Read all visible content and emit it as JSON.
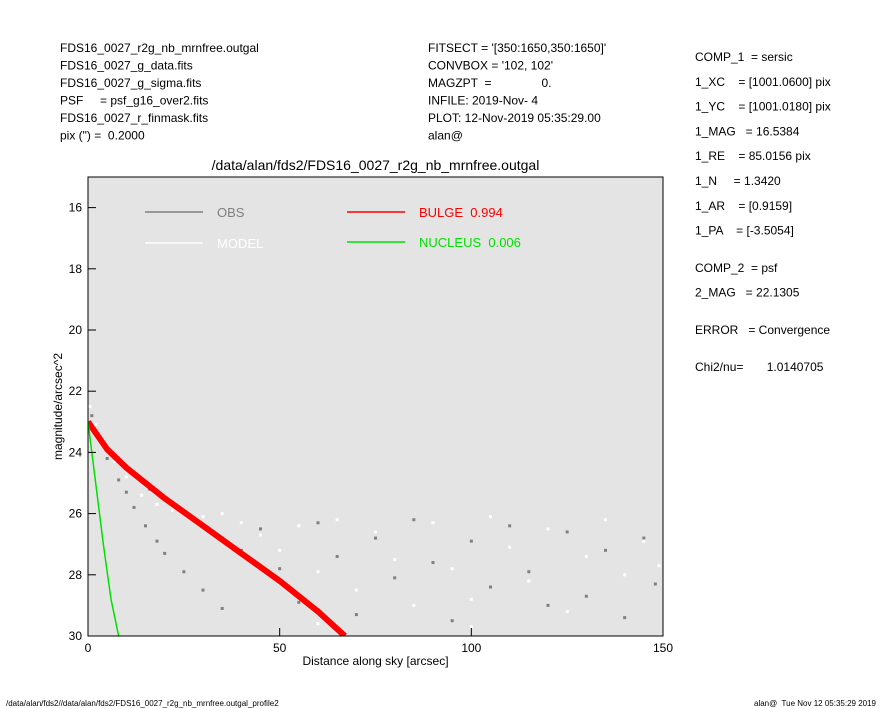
{
  "header": {
    "left": [
      "FDS16_0027_r2g_nb_mrnfree.outgal",
      "FDS16_0027_g_data.fits",
      "FDS16_0027_g_sigma.fits",
      "PSF     = psf_g16_over2.fits",
      "FDS16_0027_r_finmask.fits",
      "pix (\") =  0.2000"
    ],
    "middle": [
      "FITSECT = '[350:1650,350:1650]'",
      "CONVBOX = '102, 102'",
      "MAGZPT  =               0.",
      "INFILE: 2019-Nov- 4",
      "PLOT: 12-Nov-2019 05:35:29.00",
      "alan@"
    ]
  },
  "params": [
    [
      "COMP_1  = sersic",
      "1_XC    = [1001.0600] pix",
      "1_YC    = [1001.0180] pix",
      "1_MAG   = 16.5384",
      "1_RE    = 85.0156 pix",
      "1_N     = 1.3420",
      "1_AR    = [0.9159]",
      "1_PA    = [-3.5054]"
    ],
    [
      "COMP_2  = psf",
      "2_MAG   = 22.1305"
    ],
    [
      "ERROR   = Convergence"
    ],
    [
      "Chi2/nu=       1.0140705"
    ]
  ],
  "footer": {
    "left": "/data/alan/fds2//data/alan/fds2/FDS16_0027_r2g_nb_mrnfree.outgal_profile2",
    "right": "alan@  Tue Nov 12 05:35:29 2019"
  },
  "chart_data": {
    "type": "line",
    "title": "/data/alan/fds2/FDS16_0027_r2g_nb_mrnfree.outgal",
    "xlabel": "Distance along sky [arcsec]",
    "ylabel": "magnitude/arcsec^2",
    "xlim": [
      0,
      150
    ],
    "xticks": [
      0,
      50,
      100,
      150
    ],
    "ylim": [
      15,
      30
    ],
    "yticks": [
      16,
      18,
      20,
      22,
      24,
      26,
      28,
      30
    ],
    "y_inverted": true,
    "series": [
      {
        "name": "OBS",
        "color": "#808080",
        "kind": "scatter",
        "x": [
          1,
          3,
          5,
          8,
          10,
          12,
          15,
          18,
          20,
          25,
          30,
          35,
          40,
          45,
          50,
          55,
          60,
          65,
          70,
          75,
          80,
          85,
          90,
          95,
          100,
          105,
          110,
          115,
          120,
          125,
          130,
          135,
          140,
          145,
          148,
          22,
          28,
          6,
          2,
          16
        ],
        "values": [
          22.8,
          23.6,
          24.2,
          24.9,
          25.3,
          25.8,
          26.4,
          26.9,
          27.3,
          27.9,
          28.5,
          29.1,
          27.2,
          26.5,
          27.8,
          28.9,
          26.3,
          27.4,
          29.3,
          26.8,
          28.1,
          26.2,
          27.6,
          29.5,
          26.9,
          28.4,
          26.4,
          27.9,
          29.0,
          26.6,
          28.7,
          27.2,
          29.4,
          26.8,
          28.3,
          25.9,
          26.2,
          24.0,
          23.3,
          25.2
        ]
      },
      {
        "name": "MODEL",
        "color": "#ffffff",
        "kind": "scatter",
        "x": [
          0.5,
          2,
          4,
          7,
          10,
          14,
          18,
          22,
          26,
          30,
          35,
          40,
          45,
          50,
          55,
          60,
          65,
          70,
          75,
          80,
          85,
          90,
          95,
          100,
          105,
          110,
          115,
          120,
          125,
          130,
          135,
          140,
          145,
          149,
          60,
          100
        ],
        "values": [
          22.5,
          23.1,
          23.6,
          24.3,
          24.8,
          25.4,
          25.7,
          25.9,
          26.0,
          26.1,
          26.0,
          26.3,
          26.7,
          27.2,
          26.4,
          27.9,
          26.2,
          28.5,
          26.6,
          27.5,
          29.0,
          26.3,
          27.8,
          28.8,
          26.1,
          27.1,
          28.2,
          26.5,
          29.2,
          27.4,
          26.2,
          28.0,
          26.9,
          27.7,
          29.6,
          29.7
        ]
      },
      {
        "name": "BULGE  0.994",
        "color": "#ff0000",
        "kind": "line",
        "x": [
          0,
          5,
          10,
          20,
          30,
          40,
          50,
          60,
          67
        ],
        "values": [
          23.0,
          23.9,
          24.5,
          25.5,
          26.4,
          27.3,
          28.2,
          29.2,
          30.0
        ]
      },
      {
        "name": "NUCLEUS  0.006",
        "color": "#00e000",
        "kind": "line",
        "x": [
          0,
          2,
          4,
          6,
          8
        ],
        "values": [
          23.0,
          25.0,
          27.0,
          28.8,
          30.0
        ]
      }
    ]
  }
}
